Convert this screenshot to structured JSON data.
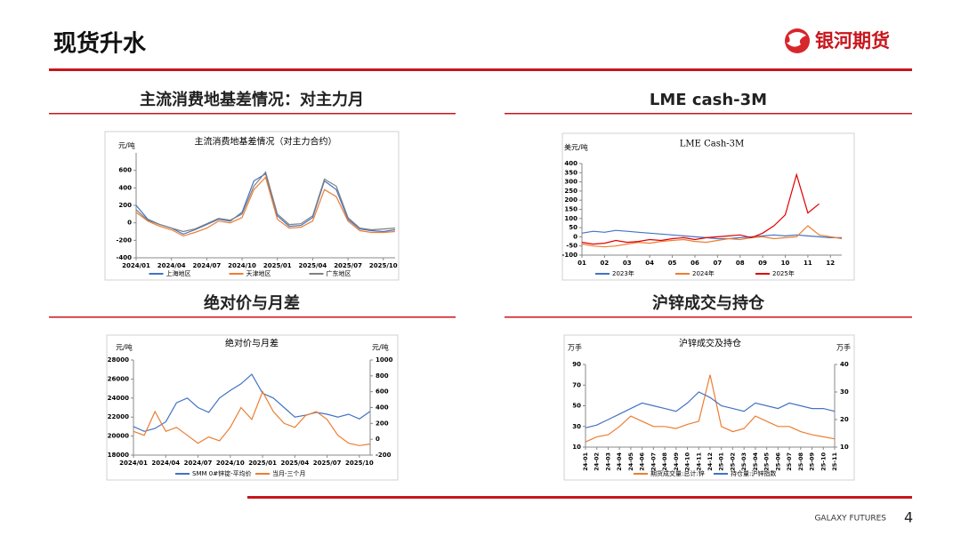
{
  "header": {
    "title": "现货升水",
    "logo": "银河期货"
  },
  "sections": [
    "主流消费地基差情况：对主力月",
    "LME cash-3M",
    "绝对价与月差",
    "沪锌成交与持仓"
  ],
  "footer": {
    "brand": "GALAXY FUTURES",
    "page": "4"
  },
  "chart_data": [
    {
      "type": "line",
      "title": "主流消费地基差情况（对主力合约）",
      "y_label": "元/吨",
      "x": [
        0,
        1,
        2,
        3,
        4,
        5,
        6,
        7,
        8,
        9,
        10,
        11,
        12,
        13,
        14,
        15,
        16,
        17,
        18,
        19,
        20,
        21,
        22
      ],
      "xlim": [
        0,
        22
      ],
      "xticks": [
        {
          "value": 0,
          "label": "2024/01"
        },
        {
          "value": 3,
          "label": "2024/04"
        },
        {
          "value": 6,
          "label": "2024/07"
        },
        {
          "value": 9,
          "label": "2024/10"
        },
        {
          "value": 12,
          "label": "2025/01"
        },
        {
          "value": 15,
          "label": "2025/04"
        },
        {
          "value": 18,
          "label": "2025/07"
        },
        {
          "value": 21,
          "label": "2025/10"
        }
      ],
      "ylim": [
        -400,
        800
      ],
      "yticks": [
        -400,
        -200,
        0,
        200,
        400,
        600
      ],
      "series": [
        {
          "name": "上海地区",
          "color": "#4472c4",
          "values": [
            200,
            40,
            -20,
            -60,
            -130,
            -80,
            -20,
            40,
            20,
            120,
            480,
            560,
            80,
            -40,
            -30,
            60,
            480,
            380,
            40,
            -70,
            -90,
            -100,
            -80
          ]
        },
        {
          "name": "天津地区",
          "color": "#ed7d31",
          "values": [
            120,
            20,
            -40,
            -80,
            -150,
            -110,
            -60,
            20,
            0,
            60,
            380,
            520,
            40,
            -60,
            -50,
            20,
            380,
            300,
            20,
            -90,
            -110,
            -110,
            -100
          ]
        },
        {
          "name": "广东地区",
          "color": "#7f7f7f",
          "values": [
            150,
            30,
            -20,
            -60,
            -100,
            -70,
            -10,
            50,
            30,
            100,
            420,
            580,
            100,
            -20,
            -10,
            80,
            500,
            420,
            60,
            -60,
            -80,
            -70,
            -60
          ]
        }
      ]
    },
    {
      "type": "line",
      "title": "LME Cash-3M",
      "y_label": "美元/吨",
      "x": [
        1,
        1.5,
        2,
        2.5,
        3,
        3.5,
        4,
        4.5,
        5,
        5.5,
        6,
        6.5,
        7,
        7.5,
        8,
        8.5,
        9,
        9.5,
        10,
        10.5,
        11,
        11.5,
        12,
        12.5
      ],
      "xlim": [
        1,
        12.5
      ],
      "xticks": [
        {
          "value": 1,
          "label": "01"
        },
        {
          "value": 2,
          "label": "02"
        },
        {
          "value": 3,
          "label": "03"
        },
        {
          "value": 4,
          "label": "04"
        },
        {
          "value": 5,
          "label": "05"
        },
        {
          "value": 6,
          "label": "06"
        },
        {
          "value": 7,
          "label": "07"
        },
        {
          "value": 8,
          "label": "08"
        },
        {
          "value": 9,
          "label": "09"
        },
        {
          "value": 10,
          "label": "10"
        },
        {
          "value": 11,
          "label": "11"
        },
        {
          "value": 12,
          "label": "12"
        }
      ],
      "ylim": [
        -100,
        400
      ],
      "yticks": [
        -100,
        -50,
        0,
        50,
        100,
        150,
        200,
        250,
        300,
        350,
        400
      ],
      "series": [
        {
          "name": "2023年",
          "color": "#4472c4",
          "values": [
            20,
            30,
            25,
            35,
            30,
            25,
            20,
            15,
            10,
            5,
            0,
            -5,
            -10,
            -10,
            -5,
            0,
            5,
            10,
            5,
            10,
            5,
            0,
            -5,
            -5
          ]
        },
        {
          "name": "2024年",
          "color": "#ed7d31",
          "values": [
            -40,
            -50,
            -55,
            -50,
            -40,
            -30,
            -35,
            -25,
            -20,
            -15,
            -25,
            -30,
            -20,
            -10,
            -15,
            -5,
            0,
            -10,
            -5,
            0,
            60,
            10,
            0,
            -10
          ]
        },
        {
          "name": "2025年",
          "color": "#e00000",
          "values": [
            -30,
            -40,
            -35,
            -20,
            -30,
            -25,
            -15,
            -20,
            -10,
            -5,
            -15,
            -5,
            0,
            5,
            10,
            -5,
            20,
            60,
            120,
            340,
            130,
            180,
            null,
            null
          ]
        }
      ]
    },
    {
      "type": "line",
      "title": "绝对价与月差",
      "y_label": "元/吨",
      "y2_label": "元/吨",
      "x": [
        0,
        1,
        2,
        3,
        4,
        5,
        6,
        7,
        8,
        9,
        10,
        11,
        12,
        13,
        14,
        15,
        16,
        17,
        18,
        19,
        20,
        21,
        22
      ],
      "xlim": [
        0,
        22
      ],
      "xticks": [
        {
          "value": 0,
          "label": "2024/01"
        },
        {
          "value": 3,
          "label": "2024/04"
        },
        {
          "value": 6,
          "label": "2024/07"
        },
        {
          "value": 9,
          "label": "2024/10"
        },
        {
          "value": 12,
          "label": "2025/01"
        },
        {
          "value": 15,
          "label": "2025/04"
        },
        {
          "value": 18,
          "label": "2025/07"
        },
        {
          "value": 21,
          "label": "2025/10"
        }
      ],
      "ylim": [
        18000,
        28000
      ],
      "yticks": [
        18000,
        20000,
        22000,
        24000,
        26000,
        28000
      ],
      "y2lim": [
        -200,
        1000
      ],
      "y2ticks": [
        -200,
        0,
        200,
        400,
        600,
        800,
        1000
      ],
      "series": [
        {
          "name": "SMM 0#锌锭-平均价",
          "color": "#4472c4",
          "values": [
            21000,
            20500,
            20800,
            21500,
            23500,
            24000,
            23000,
            22500,
            24000,
            24800,
            25500,
            26500,
            24500,
            24000,
            23000,
            22000,
            22200,
            22500,
            22300,
            22000,
            22300,
            21800,
            22600
          ]
        },
        {
          "name": "当月-三个月",
          "color": "#ed7d31",
          "axis": "y2",
          "values": [
            100,
            50,
            350,
            100,
            150,
            50,
            -50,
            30,
            -20,
            150,
            400,
            250,
            600,
            350,
            200,
            150,
            300,
            350,
            250,
            50,
            -50,
            -80,
            -60
          ]
        }
      ]
    },
    {
      "type": "line",
      "title": "沪锌成交及持仓",
      "y_label": "万手",
      "y2_label": "万手",
      "xtick_rotation": -90,
      "x": [
        0,
        1,
        2,
        3,
        4,
        5,
        6,
        7,
        8,
        9,
        10,
        11,
        12,
        13,
        14,
        15,
        16,
        17,
        18,
        19,
        20,
        21,
        22
      ],
      "xlim": [
        0,
        22
      ],
      "xticks": [
        {
          "value": 0,
          "label": "24-01"
        },
        {
          "value": 1,
          "label": "24-02"
        },
        {
          "value": 2,
          "label": "24-03"
        },
        {
          "value": 3,
          "label": "24-04"
        },
        {
          "value": 4,
          "label": "24-05"
        },
        {
          "value": 5,
          "label": "24-06"
        },
        {
          "value": 6,
          "label": "24-07"
        },
        {
          "value": 7,
          "label": "24-08"
        },
        {
          "value": 8,
          "label": "24-09"
        },
        {
          "value": 9,
          "label": "24-10"
        },
        {
          "value": 10,
          "label": "24-11"
        },
        {
          "value": 11,
          "label": "24-12"
        },
        {
          "value": 12,
          "label": "25-01"
        },
        {
          "value": 13,
          "label": "25-02"
        },
        {
          "value": 14,
          "label": "25-03"
        },
        {
          "value": 15,
          "label": "25-04"
        },
        {
          "value": 16,
          "label": "25-05"
        },
        {
          "value": 17,
          "label": "25-06"
        },
        {
          "value": 18,
          "label": "25-07"
        },
        {
          "value": 19,
          "label": "25-08"
        },
        {
          "value": 20,
          "label": "25-09"
        },
        {
          "value": 21,
          "label": "25-10"
        },
        {
          "value": 22,
          "label": "25-11"
        }
      ],
      "ylim": [
        10,
        90
      ],
      "yticks": [
        10,
        30,
        50,
        70,
        90
      ],
      "y2lim": [
        10,
        40
      ],
      "y2ticks": [
        10,
        20,
        30,
        40
      ],
      "series": [
        {
          "name": "期货成交量:总计:锌",
          "color": "#ed7d31",
          "values": [
            15,
            20,
            22,
            30,
            40,
            35,
            30,
            30,
            28,
            32,
            35,
            80,
            30,
            25,
            28,
            40,
            35,
            30,
            30,
            25,
            22,
            20,
            18
          ]
        },
        {
          "name": "持仓量:沪锌指数",
          "color": "#4472c4",
          "axis": "y2",
          "values": [
            17,
            18,
            20,
            22,
            24,
            26,
            25,
            24,
            23,
            26,
            30,
            28,
            25,
            24,
            23,
            26,
            25,
            24,
            26,
            25,
            24,
            24,
            23
          ]
        }
      ]
    }
  ]
}
